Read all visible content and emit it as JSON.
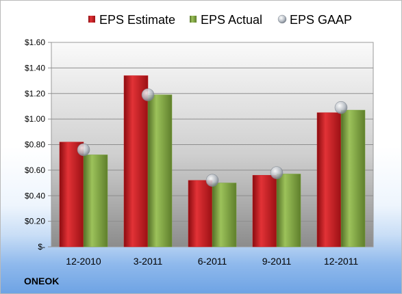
{
  "company": "ONEOK",
  "chart_data": {
    "type": "bar",
    "categories": [
      "12-2010",
      "3-2011",
      "6-2011",
      "9-2011",
      "12-2011"
    ],
    "series": [
      {
        "name": "EPS Estimate",
        "color": "#c8191c",
        "values": [
          0.82,
          1.34,
          0.52,
          0.56,
          1.05
        ]
      },
      {
        "name": "EPS Actual",
        "color": "#7aa33c",
        "values": [
          0.72,
          1.19,
          0.5,
          0.57,
          1.07
        ]
      }
    ],
    "markers": {
      "name": "EPS GAAP",
      "type": "scatter",
      "color": "#b8bec6",
      "values": [
        0.76,
        1.19,
        0.52,
        0.58,
        1.09
      ]
    },
    "yticks": [
      "$-",
      "$0.20",
      "$0.40",
      "$0.60",
      "$0.80",
      "$1.00",
      "$1.20",
      "$1.40",
      "$1.60"
    ],
    "ylim": [
      0,
      1.6
    ],
    "grid": true,
    "legend": "top"
  }
}
